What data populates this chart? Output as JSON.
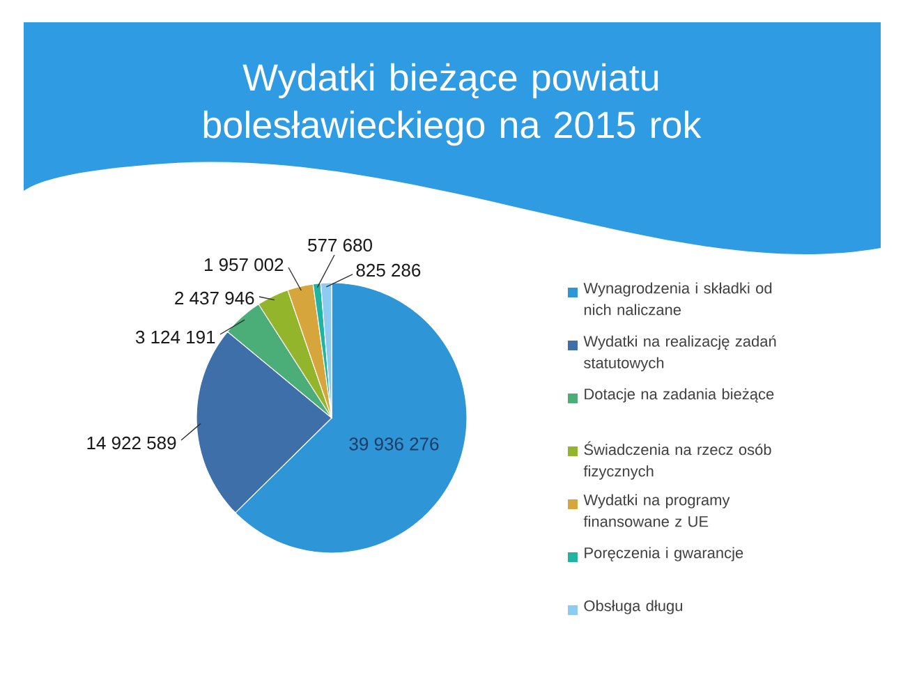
{
  "chart_data": {
    "type": "pie",
    "title": "Wydatki bieżące powiatu bolesławieckiego na 2015 rok",
    "categories": [
      "Wynagrodzenia i składki od nich naliczane",
      "Wydatki na realizację zadań statutowych",
      "Dotacje na zadania bieżące",
      "Świadczenia na rzecz osób fizycznych",
      "Wydatki na programy finansowane z UE",
      "Poręczenia i gwarancje",
      "Obsługa długu"
    ],
    "values": [
      39936276,
      14922589,
      3124191,
      2437946,
      1957002,
      577680,
      825286
    ],
    "colors": [
      "#2e95d6",
      "#3f6fa8",
      "#4bae78",
      "#93b52c",
      "#d6a53c",
      "#1fb5a0",
      "#8ecbf0"
    ],
    "value_labels": [
      "39 936 276",
      "14 922 589",
      "3 124 191",
      "2 437 946",
      "1 957 002",
      "577 680",
      "825 286"
    ],
    "legend": "right"
  }
}
